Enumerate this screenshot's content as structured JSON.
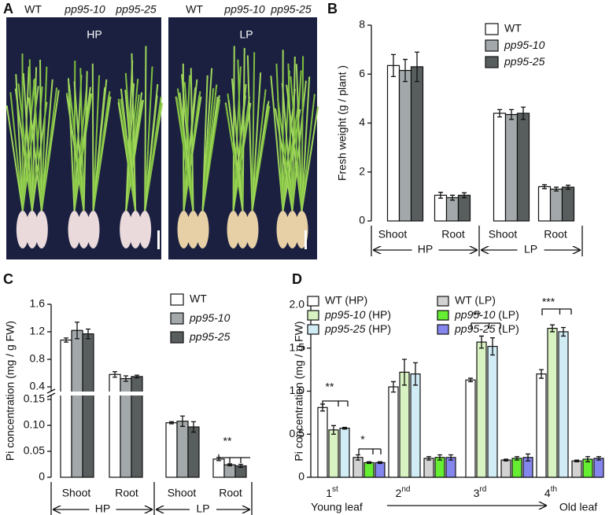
{
  "panel_labels": [
    "A",
    "B",
    "C",
    "D"
  ],
  "photo_panel": {
    "genotypes": [
      "WT",
      "pp95-10",
      "pp95-25"
    ],
    "conditions": [
      "HP",
      "LP"
    ]
  },
  "chart_data": [
    {
      "type": "bar",
      "ylabel": "Fresh weight (g / plant )",
      "categories": [
        "Shoot",
        "Root",
        "Shoot",
        "Root"
      ],
      "groups": [
        "HP",
        "LP"
      ],
      "ylim": [
        0,
        8
      ],
      "yticks": [
        0,
        2,
        4,
        6,
        8
      ],
      "series": [
        {
          "name": "WT",
          "color": "#ffffff",
          "values": [
            6.35,
            1.05,
            4.4,
            1.4
          ],
          "errors": [
            0.45,
            0.12,
            0.15,
            0.08
          ]
        },
        {
          "name": "pp95-10",
          "color": "#a3a8aa",
          "values": [
            6.15,
            0.95,
            4.35,
            1.3
          ],
          "errors": [
            0.45,
            0.1,
            0.2,
            0.08
          ]
        },
        {
          "name": "pp95-25",
          "color": "#585d5e",
          "values": [
            6.3,
            1.05,
            4.4,
            1.38
          ],
          "errors": [
            0.6,
            0.1,
            0.25,
            0.08
          ]
        }
      ]
    },
    {
      "type": "bar",
      "ylabel": "Pi concentration (mg / g FW)",
      "categories": [
        "Shoot",
        "Root",
        "Shoot",
        "Root"
      ],
      "groups": [
        "HP",
        "LP"
      ],
      "ylim_segments": [
        {
          "ylim": [
            0,
            0.15
          ],
          "yticks": [
            0,
            0.05,
            {
              "value": 0.1,
              "label": "0.10"
            },
            0.15
          ]
        },
        {
          "ylim": [
            0.4,
            1.6
          ],
          "yticks": [
            0.4,
            0.8,
            1.2,
            1.6
          ]
        }
      ],
      "series": [
        {
          "name": "WT",
          "color": "#ffffff",
          "values": [
            1.08,
            0.58,
            0.105,
            0.035
          ],
          "errors": [
            0.03,
            0.04,
            0.002,
            0.003
          ]
        },
        {
          "name": "pp95-10",
          "color": "#a3a8aa",
          "values": [
            1.22,
            0.52,
            0.108,
            0.024
          ],
          "errors": [
            0.12,
            0.04,
            0.01,
            0.002
          ]
        },
        {
          "name": "pp95-25",
          "color": "#585d5e",
          "values": [
            1.17,
            0.55,
            0.097,
            0.022
          ],
          "errors": [
            0.07,
            0.02,
            0.01,
            0.003
          ]
        }
      ],
      "annotations": [
        "**"
      ]
    },
    {
      "type": "bar",
      "ylabel": "Pi concentration (mg / g FW)",
      "categories": [
        "1st",
        "2nd",
        "3rd",
        "4th"
      ],
      "leaf_labels": [
        "Young leaf",
        "Old leaf"
      ],
      "ylim": [
        0,
        2
      ],
      "yticks": [
        0,
        0.5,
        {
          "value": 1,
          "label": "1.0"
        },
        1.5,
        {
          "value": 2,
          "label": "2.0"
        }
      ],
      "series": [
        {
          "name": "WT (HP)",
          "color": "#ffffff",
          "values": [
            0.81,
            1.05,
            1.13,
            1.2
          ],
          "errors": [
            0.04,
            0.06,
            0.02,
            0.05
          ]
        },
        {
          "name": "pp95-10 (HP)",
          "color": "#d8f2c2",
          "values": [
            0.55,
            1.22,
            1.57,
            1.73
          ],
          "errors": [
            0.05,
            0.15,
            0.07,
            0.04
          ]
        },
        {
          "name": "pp95-25 (HP)",
          "color": "#d2ecf6",
          "values": [
            0.57,
            1.2,
            1.52,
            1.69
          ],
          "errors": [
            0.01,
            0.13,
            0.1,
            0.05
          ]
        },
        {
          "name": "WT (LP)",
          "color": "#d2d2d2",
          "values": [
            0.23,
            0.22,
            0.2,
            0.19
          ],
          "errors": [
            0.03,
            0.02,
            0.01,
            0.01
          ]
        },
        {
          "name": "pp95-10 (LP)",
          "color": "#66ee33",
          "values": [
            0.17,
            0.23,
            0.22,
            0.21
          ],
          "errors": [
            0.01,
            0.03,
            0.02,
            0.03
          ]
        },
        {
          "name": "pp95-25 (LP)",
          "color": "#8585ee",
          "values": [
            0.17,
            0.23,
            0.23,
            0.22
          ],
          "errors": [
            0.01,
            0.03,
            0.04,
            0.02
          ]
        }
      ],
      "annotations": [
        "**",
        "*",
        "**",
        "***"
      ]
    }
  ]
}
